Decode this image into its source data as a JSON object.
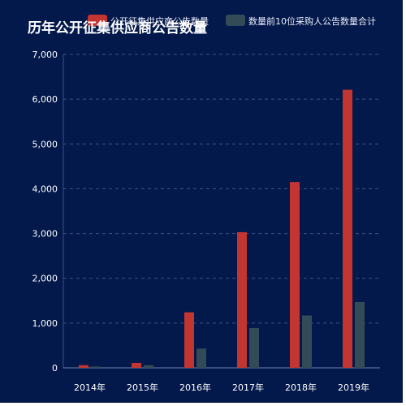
{
  "chart_data": {
    "type": "bar",
    "title": "历年公开征集供应商公告数量",
    "categories": [
      "2014年",
      "2015年",
      "2016年",
      "2017年",
      "2018年",
      "2019年"
    ],
    "series": [
      {
        "name": "公开征集供应商公告数量",
        "color": "#c23531",
        "values": [
          60,
          110,
          1240,
          3030,
          4150,
          6210
        ]
      },
      {
        "name": "数量前10位采购人公告数量合计",
        "color": "#334b56",
        "values": [
          30,
          60,
          430,
          890,
          1170,
          1470
        ]
      }
    ],
    "ylim": [
      0,
      7000
    ],
    "yticks": [
      0,
      1000,
      2000,
      3000,
      4000,
      5000,
      6000,
      7000
    ],
    "ytick_labels": [
      "0",
      "1,000",
      "2,000",
      "3,000",
      "4,000",
      "5,000",
      "6,000",
      "7,000"
    ],
    "grid": true,
    "legend_position": "top-right",
    "background": "#03184b"
  }
}
